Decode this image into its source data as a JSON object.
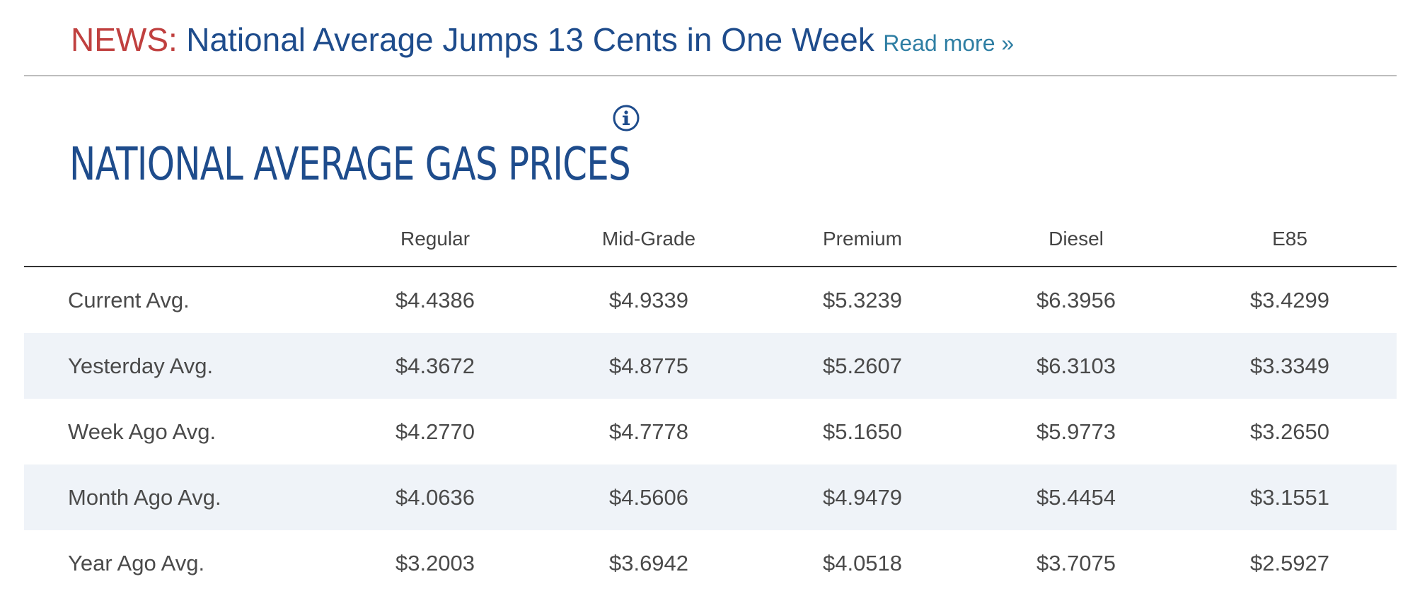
{
  "news": {
    "label": "NEWS:",
    "headline": "National Average Jumps 13 Cents in One Week",
    "read_more": "Read more »"
  },
  "section": {
    "title": "NATIONAL AVERAGE GAS PRICES",
    "info_icon": "info-circle-icon"
  },
  "colors": {
    "news_label": "#c0403f",
    "headline": "#1e4c8c",
    "link": "#2e7ea3",
    "stripe": "#eff3f8"
  },
  "table": {
    "columns": [
      "",
      "Regular",
      "Mid-Grade",
      "Premium",
      "Diesel",
      "E85"
    ],
    "rows": [
      {
        "label": "Current Avg.",
        "values": [
          "$4.4386",
          "$4.9339",
          "$5.3239",
          "$6.3956",
          "$3.4299"
        ]
      },
      {
        "label": "Yesterday Avg.",
        "values": [
          "$4.3672",
          "$4.8775",
          "$5.2607",
          "$6.3103",
          "$3.3349"
        ]
      },
      {
        "label": "Week Ago Avg.",
        "values": [
          "$4.2770",
          "$4.7778",
          "$5.1650",
          "$5.9773",
          "$3.2650"
        ]
      },
      {
        "label": "Month Ago Avg.",
        "values": [
          "$4.0636",
          "$4.5606",
          "$4.9479",
          "$5.4454",
          "$3.1551"
        ]
      },
      {
        "label": "Year Ago Avg.",
        "values": [
          "$3.2003",
          "$3.6942",
          "$4.0518",
          "$3.7075",
          "$2.5927"
        ]
      }
    ]
  }
}
